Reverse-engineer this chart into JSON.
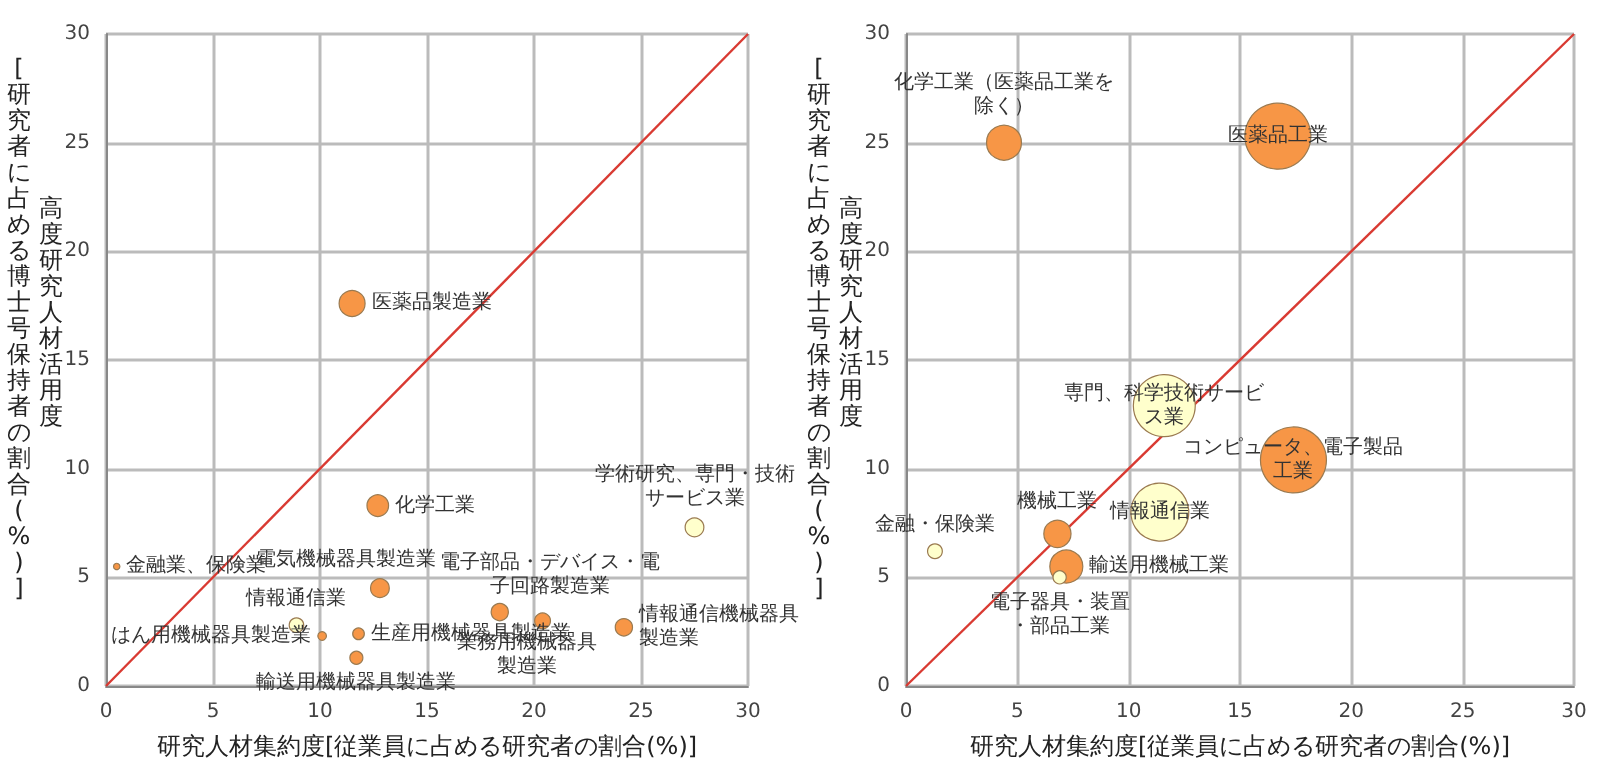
{
  "chart_data": [
    {
      "type": "bubble",
      "xlabel": "研究人材集約度[従業員に占める研究者の割合(%)]",
      "ylabel": "高度研究人材活用度\n[研究者に占める博士号保持者の割合(%)]",
      "xlim": [
        0,
        30
      ],
      "ylim": [
        0,
        30
      ],
      "xticks": [
        0,
        5,
        10,
        15,
        20,
        25,
        30
      ],
      "yticks": [
        0,
        5,
        10,
        15,
        20,
        25,
        30
      ],
      "grid": true,
      "series": [
        {
          "type": "line",
          "x": [
            0,
            30
          ],
          "values": [
            0,
            30
          ],
          "color": "#d93a32"
        },
        {
          "name": "医薬品製造業",
          "x": [
            11.5
          ],
          "values": [
            17.6
          ],
          "sizes": [
            1
          ],
          "color": "#f79646"
        },
        {
          "name": "化学工業",
          "x": [
            12.7
          ],
          "values": [
            8.3
          ],
          "sizes": [
            0.69
          ],
          "color": "#f79646"
        },
        {
          "name": "電気機械器具製造業",
          "x": [
            12.8
          ],
          "values": [
            4.5
          ],
          "sizes": [
            0.52
          ],
          "color": "#f79646"
        },
        {
          "name": "電子部品・デバイス・電子回路製造業",
          "x": [
            18.4
          ],
          "values": [
            3.4
          ],
          "sizes": [
            0.44
          ],
          "color": "#f79646"
        },
        {
          "name": "業務用機械器具製造業",
          "x": [
            20.4
          ],
          "values": [
            3.0
          ],
          "sizes": [
            0.37
          ],
          "color": "#f79646"
        },
        {
          "name": "情報通信機械器具製造業",
          "x": [
            24.2
          ],
          "values": [
            2.7
          ],
          "sizes": [
            0.44
          ],
          "color": "#f79646"
        },
        {
          "name": "学術研究、専門・技術サービス業",
          "x": [
            27.5
          ],
          "values": [
            7.3
          ],
          "sizes": [
            0.52
          ],
          "color": "#ffffcc"
        },
        {
          "name": "情報通信業",
          "x": [
            8.9
          ],
          "values": [
            2.8
          ],
          "sizes": [
            0.31
          ],
          "color": "#ffffcc"
        },
        {
          "name": "はん用機械器具製造業",
          "x": [
            10.1
          ],
          "values": [
            2.3
          ],
          "sizes": [
            0.11
          ],
          "color": "#f79646"
        },
        {
          "name": "生産用機械器具製造業",
          "x": [
            11.8
          ],
          "values": [
            2.4
          ],
          "sizes": [
            0.2
          ],
          "color": "#f79646"
        },
        {
          "name": "輸送用機械器具製造業",
          "x": [
            11.7
          ],
          "values": [
            1.3
          ],
          "sizes": [
            0.25
          ],
          "color": "#f79646"
        },
        {
          "name": "金融業、保険業",
          "x": [
            0.5
          ],
          "values": [
            5.5
          ],
          "sizes": [
            0.06
          ],
          "color": "#f79646"
        }
      ]
    },
    {
      "type": "bubble",
      "xlabel": "研究人材集約度[従業員に占める研究者の割合(%)]",
      "ylabel": "高度研究人材活用度\n[研究者に占める博士号保持者の割合(%)]",
      "xlim": [
        0,
        30
      ],
      "ylim": [
        0,
        30
      ],
      "xticks": [
        0,
        5,
        10,
        15,
        20,
        25,
        30
      ],
      "yticks": [
        0,
        5,
        10,
        15,
        20,
        25,
        30
      ],
      "grid": true,
      "series": [
        {
          "type": "line",
          "x": [
            0,
            30
          ],
          "values": [
            0,
            30
          ],
          "color": "#d93a32"
        },
        {
          "name": "化学工業（医薬品工業を除く）",
          "x": [
            4.4
          ],
          "values": [
            25
          ],
          "sizes": [
            0.28
          ],
          "color": "#f79646"
        },
        {
          "name": "医薬品工業",
          "x": [
            16.7
          ],
          "values": [
            25.3
          ],
          "sizes": [
            1
          ],
          "color": "#f79646"
        },
        {
          "name": "専門、科学技術サービス業",
          "x": [
            11.6
          ],
          "values": [
            12.9
          ],
          "sizes": [
            0.88
          ],
          "color": "#ffffcc"
        },
        {
          "name": "コンピュータ、電子製品工業",
          "x": [
            17.4
          ],
          "values": [
            10.4
          ],
          "sizes": [
            1
          ],
          "color": "#f79646"
        },
        {
          "name": "情報通信業",
          "x": [
            11.4
          ],
          "values": [
            8.0
          ],
          "sizes": [
            0.77
          ],
          "color": "#ffffcc"
        },
        {
          "name": "機械工業",
          "x": [
            6.8
          ],
          "values": [
            7.0
          ],
          "sizes": [
            0.17
          ],
          "color": "#f79646"
        },
        {
          "name": "輸送用機械工業",
          "x": [
            7.2
          ],
          "values": [
            5.5
          ],
          "sizes": [
            0.25
          ],
          "color": "#f79646"
        },
        {
          "name": "電子器具・装置・部品工業",
          "x": [
            6.9
          ],
          "values": [
            5.0
          ],
          "sizes": [
            0.04
          ],
          "color": "#ffffcc"
        },
        {
          "name": "金融・保険業",
          "x": [
            1.3
          ],
          "values": [
            6.2
          ],
          "sizes": [
            0.05
          ],
          "color": "#ffffcc"
        }
      ]
    }
  ]
}
